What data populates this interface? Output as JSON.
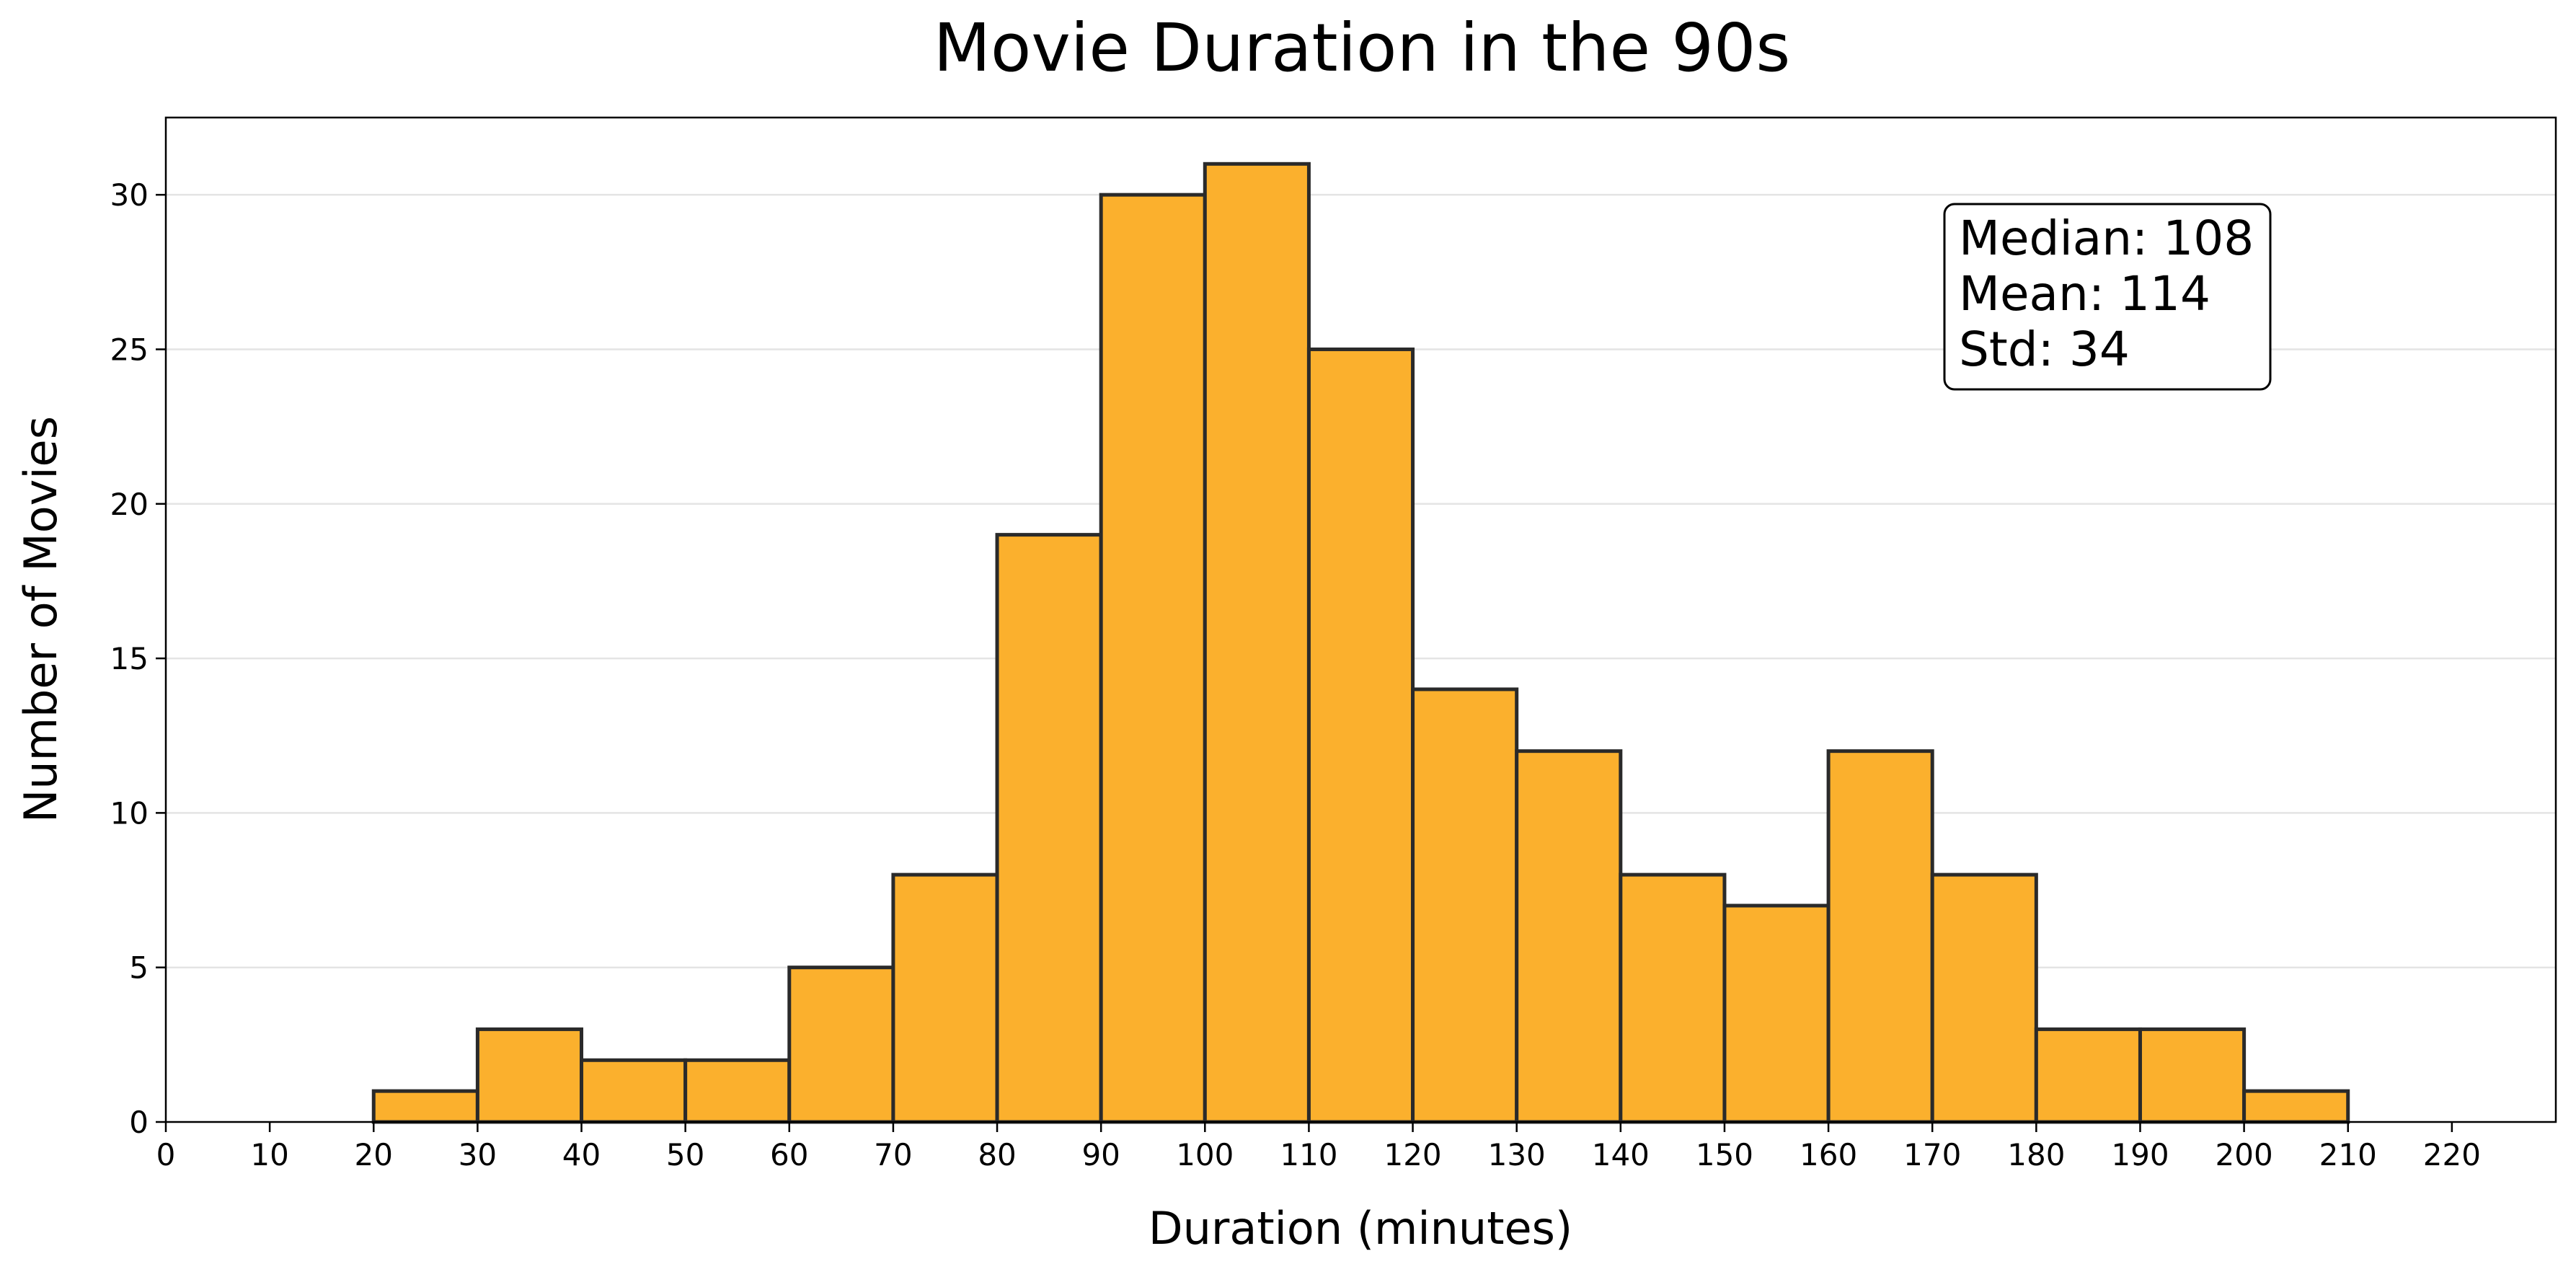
{
  "chart_data": {
    "type": "bar",
    "title": "Movie Duration in the 90s",
    "xlabel": "Duration (minutes)",
    "ylabel": "Number of Movies",
    "bin_edges": [
      0,
      10,
      20,
      30,
      40,
      50,
      60,
      70,
      80,
      90,
      100,
      110,
      120,
      130,
      140,
      150,
      160,
      170,
      180,
      190,
      200,
      210,
      220
    ],
    "values": [
      0,
      0,
      1,
      3,
      2,
      2,
      5,
      8,
      19,
      30,
      31,
      25,
      14,
      12,
      8,
      7,
      12,
      8,
      3,
      3,
      1,
      0
    ],
    "xlim": [
      0,
      230
    ],
    "ylim": [
      0,
      32.5
    ],
    "xticks": [
      0,
      10,
      20,
      30,
      40,
      50,
      60,
      70,
      80,
      90,
      100,
      110,
      120,
      130,
      140,
      150,
      160,
      170,
      180,
      190,
      200,
      210,
      220
    ],
    "yticks": [
      0,
      5,
      10,
      15,
      20,
      25,
      30
    ],
    "grid": "horizontal",
    "bar_color": "#fbb02d",
    "edge_color": "#2a2a2a",
    "stats": [
      "Median: 108",
      "Mean: 114",
      "Std: 34"
    ]
  }
}
